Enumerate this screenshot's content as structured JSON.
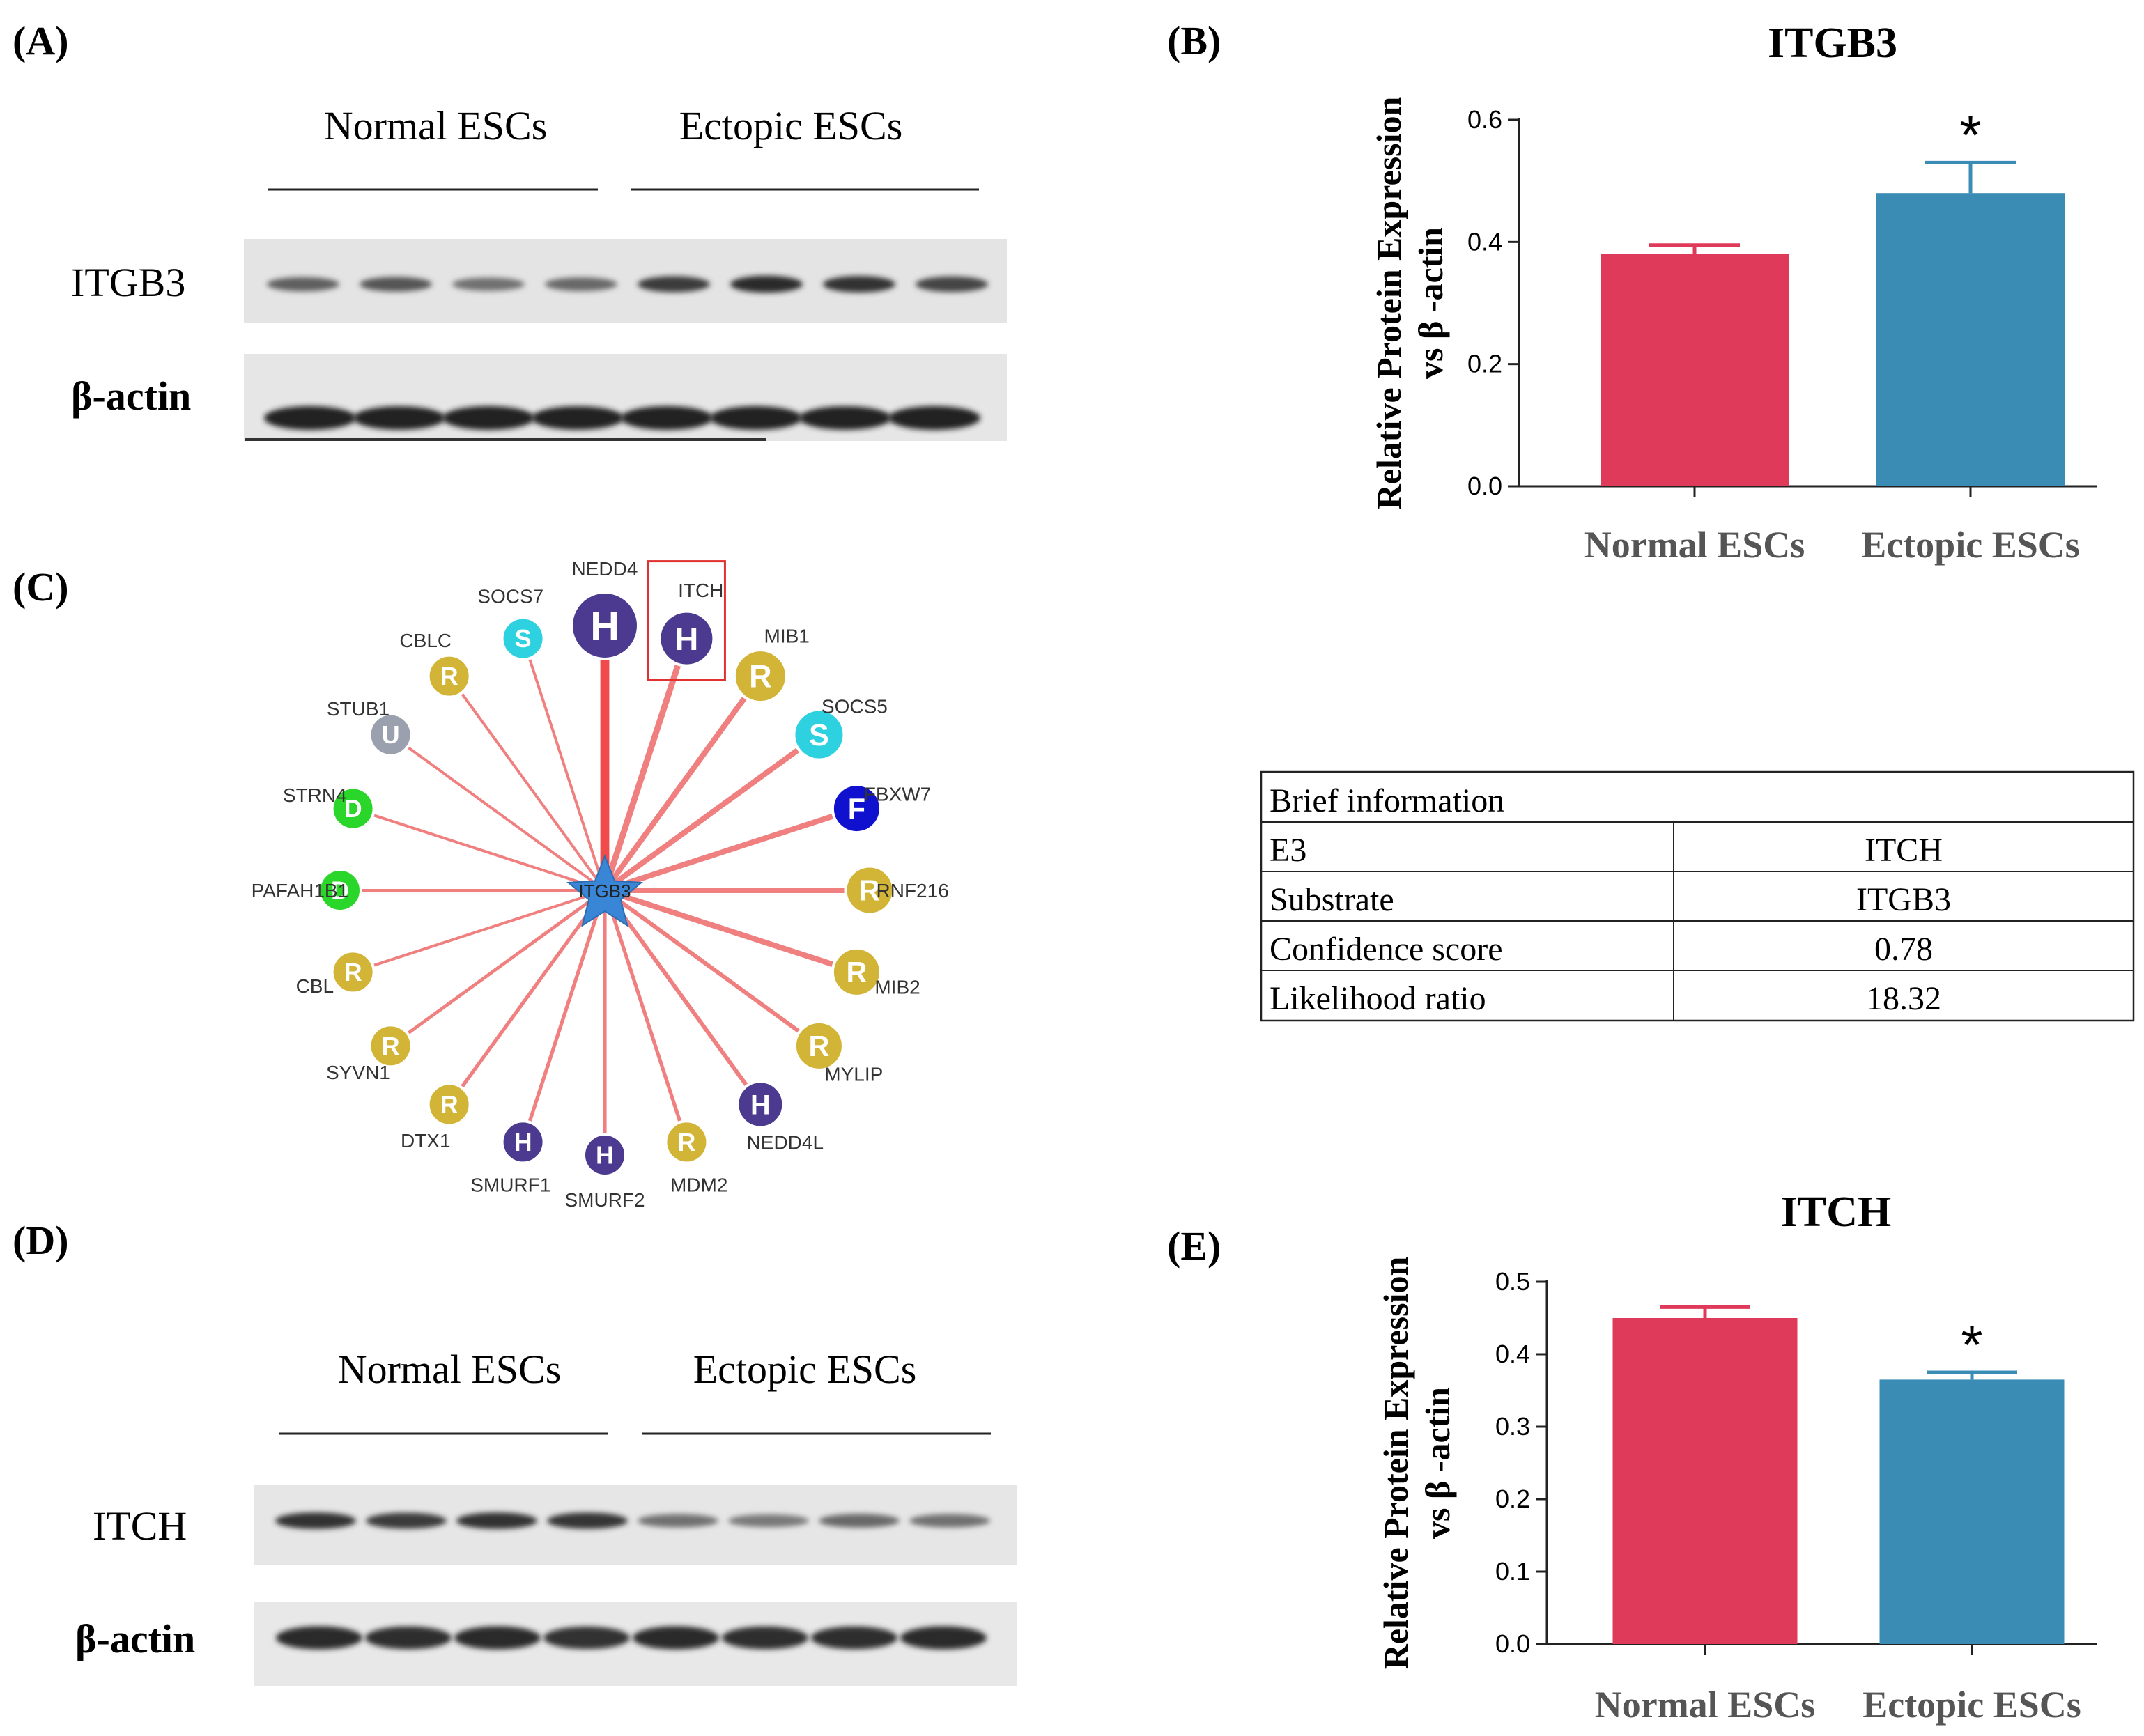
{
  "panels": {
    "A": {
      "label": "(A)",
      "group_labels": [
        "Normal ESCs",
        "Ectopic ESCs"
      ],
      "row_labels": [
        "ITGB3",
        "β-actin"
      ],
      "band_intensity": {
        "ITGB3": [
          0.55,
          0.6,
          0.45,
          0.5,
          0.75,
          0.85,
          0.8,
          0.7
        ],
        "β-actin": [
          0.9,
          0.88,
          0.9,
          0.88,
          0.9,
          0.9,
          0.88,
          0.9
        ]
      }
    },
    "B": {
      "label": "(B)"
    },
    "C": {
      "label": "(C)"
    },
    "D": {
      "label": "(D)",
      "group_labels": [
        "Normal ESCs",
        "Ectopic ESCs"
      ],
      "row_labels": [
        "ITCH",
        "β-actin"
      ],
      "band_intensity": {
        "ITCH": [
          0.8,
          0.75,
          0.8,
          0.78,
          0.45,
          0.4,
          0.5,
          0.45
        ],
        "β-actin": [
          0.85,
          0.82,
          0.85,
          0.8,
          0.85,
          0.82,
          0.82,
          0.85
        ]
      }
    },
    "E": {
      "label": "(E)"
    }
  },
  "chart_data": [
    {
      "id": "B",
      "type": "bar",
      "title": "ITGB3",
      "categories": [
        "Normal ESCs",
        "Ectopic ESCs"
      ],
      "values": [
        0.38,
        0.48
      ],
      "errors": [
        0.015,
        0.05
      ],
      "colors": [
        "#e03a5a",
        "#3a8cb5"
      ],
      "significance": [
        "",
        "*"
      ],
      "ylabel": [
        "Relative Protein Expression",
        "vs β -actin"
      ],
      "ylim": [
        0,
        0.6
      ],
      "yticks": [
        "0.0",
        "0.2",
        "0.4",
        "0.6"
      ]
    },
    {
      "id": "E",
      "type": "bar",
      "title": "ITCH",
      "categories": [
        "Normal ESCs",
        "Ectopic ESCs"
      ],
      "values": [
        0.45,
        0.365
      ],
      "errors": [
        0.015,
        0.01
      ],
      "colors": [
        "#e03a5a",
        "#3a8cb5"
      ],
      "significance": [
        "",
        "*"
      ],
      "ylabel": [
        "Relative Protein Expression",
        "vs β -actin"
      ],
      "ylim": [
        0,
        0.5
      ],
      "yticks": [
        "0.0",
        "0.1",
        "0.2",
        "0.3",
        "0.4",
        "0.5"
      ]
    }
  ],
  "network": {
    "center": "ITGB3",
    "highlighted": "ITCH",
    "type_colors": {
      "H": "#4b3a8f",
      "R": "#d2b436",
      "S": "#2ed1df",
      "U": "#9aa0ad",
      "D": "#2bd62b",
      "F": "#1010cf"
    },
    "nodes": [
      {
        "name": "NEDD4",
        "type": "H",
        "weight": 3.2,
        "size": 1.6
      },
      {
        "name": "ITCH",
        "type": "H",
        "weight": 2.2,
        "size": 1.3
      },
      {
        "name": "MIB1",
        "type": "R",
        "weight": 2.0,
        "size": 1.25
      },
      {
        "name": "SOCS5",
        "type": "S",
        "weight": 2.0,
        "size": 1.2
      },
      {
        "name": "FBXW7",
        "type": "F",
        "weight": 2.0,
        "size": 1.15
      },
      {
        "name": "RNF216",
        "type": "R",
        "weight": 2.0,
        "size": 1.15
      },
      {
        "name": "MIB2",
        "type": "R",
        "weight": 2.0,
        "size": 1.15
      },
      {
        "name": "MYLIP",
        "type": "R",
        "weight": 1.5,
        "size": 1.15
      },
      {
        "name": "NEDD4L",
        "type": "H",
        "weight": 1.5,
        "size": 1.1
      },
      {
        "name": "MDM2",
        "type": "R",
        "weight": 1.3,
        "size": 1.0
      },
      {
        "name": "SMURF2",
        "type": "H",
        "weight": 1.3,
        "size": 1.0
      },
      {
        "name": "SMURF1",
        "type": "H",
        "weight": 1.3,
        "size": 1.0
      },
      {
        "name": "DTX1",
        "type": "R",
        "weight": 1.3,
        "size": 1.0
      },
      {
        "name": "SYVN1",
        "type": "R",
        "weight": 1.2,
        "size": 1.0
      },
      {
        "name": "CBL",
        "type": "R",
        "weight": 1.0,
        "size": 1.0
      },
      {
        "name": "PAFAH1B1",
        "type": "D",
        "weight": 1.0,
        "size": 1.0
      },
      {
        "name": "STRN4",
        "type": "D",
        "weight": 1.0,
        "size": 1.0
      },
      {
        "name": "STUB1",
        "type": "U",
        "weight": 1.0,
        "size": 1.0
      },
      {
        "name": "CBLC",
        "type": "R",
        "weight": 1.0,
        "size": 1.0
      },
      {
        "name": "SOCS7",
        "type": "S",
        "weight": 1.0,
        "size": 1.0
      }
    ]
  },
  "brief_info": {
    "heading": "Brief information",
    "rows": [
      {
        "key": "E3",
        "value": "ITCH"
      },
      {
        "key": "Substrate",
        "value": "ITGB3"
      },
      {
        "key": "Confidence score",
        "value": "0.78"
      },
      {
        "key": "Likelihood ratio",
        "value": "18.32"
      }
    ]
  }
}
